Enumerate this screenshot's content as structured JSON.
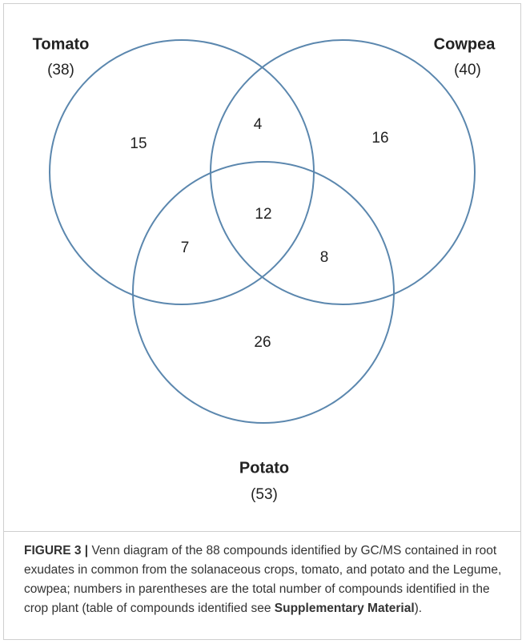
{
  "sets": [
    {
      "name": "Tomato",
      "total": "(38)"
    },
    {
      "name": "Cowpea",
      "total": "(40)"
    },
    {
      "name": "Potato",
      "total": "(53)"
    }
  ],
  "regions": {
    "tomato_only": "15",
    "tomato_cowpea": "4",
    "cowpea_only": "16",
    "all": "12",
    "tomato_potato": "7",
    "cowpea_potato": "8",
    "potato_only": "26"
  },
  "caption": {
    "label": "FIGURE 3 |",
    "text": " Venn diagram of the 88 compounds identified by GC/MS contained in root exudates in common from the solanaceous crops, tomato, and potato and the Legume, cowpea; numbers in parentheses are the total number of compounds identified in the crop plant (table of compounds identified see ",
    "link": "Supplementary Material",
    "end": ")."
  }
}
